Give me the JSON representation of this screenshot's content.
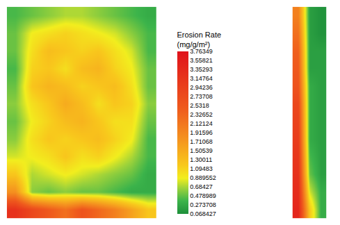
{
  "chart_data": {
    "type": "heatmap",
    "tick_labels": false,
    "colorbar_title": [
      "Erosion Rate",
      "(mg/g/m²)"
    ],
    "color_range": [
      0.068427,
      3.76349
    ],
    "color_ticks": [
      3.76349,
      3.55821,
      3.35293,
      3.14764,
      2.94236,
      2.73708,
      2.5318,
      2.32652,
      2.12124,
      1.91596,
      1.71068,
      1.50539,
      1.30011,
      1.09483,
      0.889552,
      0.68427,
      0.478989,
      0.273708,
      0.068427
    ],
    "panels": [
      {
        "cells": [
          [
            0.4,
            0.5,
            0.6,
            0.7,
            0.7,
            0.6,
            0.5,
            0.4,
            0.3
          ],
          [
            0.5,
            0.9,
            1.0,
            1.1,
            1.0,
            0.9,
            0.8,
            0.6,
            0.4
          ],
          [
            0.5,
            1.0,
            1.3,
            1.2,
            1.1,
            1.2,
            1.0,
            0.8,
            0.4
          ],
          [
            0.4,
            1.1,
            1.2,
            1.0,
            1.3,
            1.4,
            1.1,
            0.9,
            0.5
          ],
          [
            0.5,
            1.2,
            1.4,
            1.3,
            1.1,
            1.2,
            1.3,
            1.0,
            0.5
          ],
          [
            0.6,
            1.0,
            1.2,
            1.5,
            1.3,
            1.0,
            1.2,
            1.1,
            0.6
          ],
          [
            0.5,
            0.9,
            1.1,
            1.3,
            1.4,
            1.2,
            1.0,
            1.0,
            0.5
          ],
          [
            0.6,
            1.0,
            1.2,
            1.1,
            1.2,
            1.3,
            1.1,
            0.9,
            0.4
          ],
          [
            0.8,
            0.9,
            1.0,
            1.2,
            1.0,
            1.1,
            0.9,
            0.7,
            0.4
          ],
          [
            1.2,
            0.7,
            0.8,
            0.9,
            0.8,
            0.7,
            0.6,
            0.5,
            0.3
          ],
          [
            1.8,
            0.6,
            0.5,
            0.6,
            0.5,
            0.5,
            0.4,
            0.3,
            0.3
          ],
          [
            3.2,
            2.8,
            2.5,
            2.2,
            2.6,
            2.3,
            2.0,
            1.6,
            1.2
          ]
        ]
      },
      {
        "cells": [
          [
            2.0,
            0.2,
            0.1
          ],
          [
            2.2,
            0.2,
            0.1
          ],
          [
            2.4,
            0.2,
            0.2
          ],
          [
            2.5,
            0.2,
            0.2
          ],
          [
            2.6,
            0.3,
            0.2
          ],
          [
            2.8,
            0.3,
            0.2
          ],
          [
            2.9,
            0.3,
            0.2
          ],
          [
            3.0,
            0.3,
            0.2
          ],
          [
            3.1,
            0.4,
            0.2
          ],
          [
            3.2,
            0.5,
            0.2
          ],
          [
            3.3,
            0.8,
            0.3
          ],
          [
            3.4,
            1.2,
            0.3
          ]
        ]
      }
    ]
  }
}
